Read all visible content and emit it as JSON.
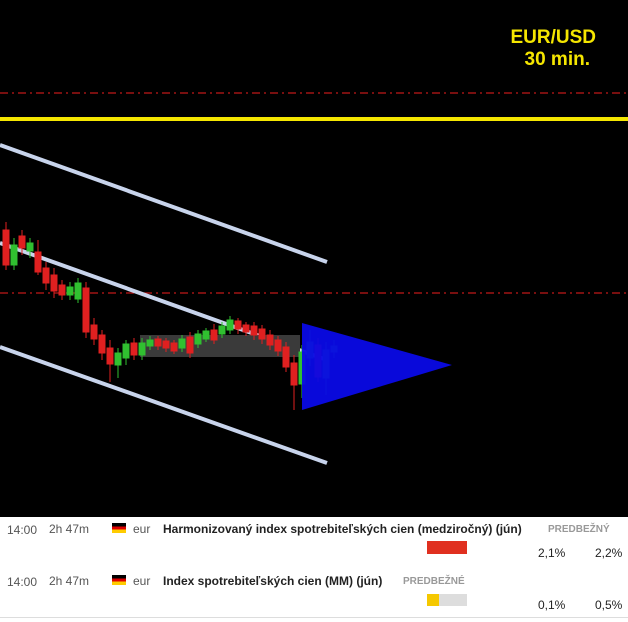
{
  "chart": {
    "symbol": "EUR/USD",
    "timeframe": "30 min."
  },
  "events": [
    {
      "time": "14:00",
      "countdown": "2h 47m",
      "currency": "eur",
      "title": "Harmonizovaný index spotrebiteľských cien (medziročný) (jún)",
      "status": "PREDBEŽNÝ",
      "actual": "2,1%",
      "previous": "2,2%"
    },
    {
      "time": "14:00",
      "countdown": "2h 47m",
      "currency": "eur",
      "title": "Index spotrebiteľských cien (MM) (jún)",
      "status": "PREDBEŽNÉ",
      "actual": "0,1%",
      "previous": "0,5%"
    }
  ]
}
